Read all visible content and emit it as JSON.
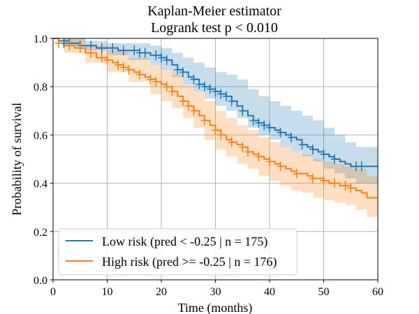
{
  "chart_data": {
    "type": "line",
    "title": "Kaplan-Meier estimator",
    "subtitle": "Logrank test p < 0.010",
    "xlabel": "Time (months)",
    "ylabel": "Probability of survival",
    "xlim": [
      0,
      60
    ],
    "ylim": [
      0.0,
      1.0
    ],
    "x_ticks": [
      "0",
      "10",
      "20",
      "30",
      "40",
      "50",
      "60"
    ],
    "y_ticks": [
      "0.0",
      "0.2",
      "0.4",
      "0.6",
      "0.8",
      "1.0"
    ],
    "grid": true,
    "legend_position": "bottom-left",
    "series": [
      {
        "name": "Low risk (pred < -0.25 | n = 175)",
        "color": "#1f77b4",
        "fill": "#1f77b4",
        "steps": [
          [
            0,
            1.0
          ],
          [
            1,
            0.99
          ],
          [
            3,
            0.98
          ],
          [
            5,
            0.97
          ],
          [
            8,
            0.96
          ],
          [
            10,
            0.96
          ],
          [
            12,
            0.95
          ],
          [
            14,
            0.95
          ],
          [
            16,
            0.94
          ],
          [
            18,
            0.93
          ],
          [
            20,
            0.92
          ],
          [
            21,
            0.91
          ],
          [
            22,
            0.89
          ],
          [
            23,
            0.87
          ],
          [
            24,
            0.86
          ],
          [
            25,
            0.84
          ],
          [
            26,
            0.83
          ],
          [
            27,
            0.81
          ],
          [
            28,
            0.8
          ],
          [
            29,
            0.79
          ],
          [
            30,
            0.78
          ],
          [
            31,
            0.77
          ],
          [
            32,
            0.76
          ],
          [
            33,
            0.74
          ],
          [
            34,
            0.72
          ],
          [
            35,
            0.7
          ],
          [
            36,
            0.68
          ],
          [
            37,
            0.66
          ],
          [
            38,
            0.65
          ],
          [
            39,
            0.64
          ],
          [
            40,
            0.63
          ],
          [
            41,
            0.62
          ],
          [
            42,
            0.61
          ],
          [
            43,
            0.6
          ],
          [
            44,
            0.59
          ],
          [
            45,
            0.58
          ],
          [
            46,
            0.56
          ],
          [
            47,
            0.55
          ],
          [
            48,
            0.54
          ],
          [
            49,
            0.53
          ],
          [
            50,
            0.52
          ],
          [
            51,
            0.51
          ],
          [
            52,
            0.5
          ],
          [
            53,
            0.49
          ],
          [
            54,
            0.48
          ],
          [
            55,
            0.47
          ],
          [
            60,
            0.47
          ]
        ],
        "ci_upper": [
          [
            0,
            1.0
          ],
          [
            2,
            1.0
          ],
          [
            6,
            0.99
          ],
          [
            10,
            0.98
          ],
          [
            14,
            0.98
          ],
          [
            18,
            0.97
          ],
          [
            20,
            0.96
          ],
          [
            22,
            0.94
          ],
          [
            24,
            0.92
          ],
          [
            26,
            0.9
          ],
          [
            28,
            0.88
          ],
          [
            30,
            0.86
          ],
          [
            32,
            0.85
          ],
          [
            34,
            0.83
          ],
          [
            36,
            0.79
          ],
          [
            38,
            0.76
          ],
          [
            40,
            0.74
          ],
          [
            42,
            0.72
          ],
          [
            44,
            0.7
          ],
          [
            46,
            0.68
          ],
          [
            48,
            0.66
          ],
          [
            50,
            0.63
          ],
          [
            52,
            0.6
          ],
          [
            54,
            0.57
          ],
          [
            56,
            0.55
          ],
          [
            60,
            0.55
          ]
        ],
        "ci_lower": [
          [
            0,
            1.0
          ],
          [
            2,
            0.97
          ],
          [
            6,
            0.95
          ],
          [
            10,
            0.93
          ],
          [
            14,
            0.91
          ],
          [
            18,
            0.89
          ],
          [
            20,
            0.87
          ],
          [
            22,
            0.84
          ],
          [
            24,
            0.81
          ],
          [
            26,
            0.78
          ],
          [
            28,
            0.75
          ],
          [
            30,
            0.72
          ],
          [
            32,
            0.7
          ],
          [
            34,
            0.67
          ],
          [
            36,
            0.63
          ],
          [
            38,
            0.6
          ],
          [
            40,
            0.58
          ],
          [
            42,
            0.55
          ],
          [
            44,
            0.53
          ],
          [
            46,
            0.51
          ],
          [
            48,
            0.49
          ],
          [
            50,
            0.46
          ],
          [
            52,
            0.44
          ],
          [
            54,
            0.42
          ],
          [
            56,
            0.4
          ],
          [
            60,
            0.4
          ]
        ],
        "censored": [
          [
            2,
            0.98
          ],
          [
            3,
            0.98
          ],
          [
            5,
            0.97
          ],
          [
            7,
            0.97
          ],
          [
            9,
            0.96
          ],
          [
            11,
            0.96
          ],
          [
            13,
            0.95
          ],
          [
            15,
            0.95
          ],
          [
            16,
            0.94
          ],
          [
            17,
            0.94
          ],
          [
            19,
            0.93
          ],
          [
            20,
            0.92
          ],
          [
            21,
            0.91
          ],
          [
            23,
            0.87
          ],
          [
            24,
            0.86
          ],
          [
            26,
            0.83
          ],
          [
            27,
            0.81
          ],
          [
            28,
            0.8
          ],
          [
            29,
            0.79
          ],
          [
            30,
            0.78
          ],
          [
            31,
            0.77
          ],
          [
            32,
            0.76
          ],
          [
            33,
            0.74
          ],
          [
            35,
            0.7
          ],
          [
            37,
            0.66
          ],
          [
            38,
            0.65
          ],
          [
            39,
            0.64
          ],
          [
            40,
            0.63
          ],
          [
            42,
            0.61
          ],
          [
            44,
            0.59
          ],
          [
            46,
            0.56
          ],
          [
            48,
            0.54
          ],
          [
            50,
            0.52
          ],
          [
            52,
            0.5
          ],
          [
            56,
            0.47
          ],
          [
            57,
            0.47
          ]
        ]
      },
      {
        "name": "High risk (pred >= -0.25 | n = 176)",
        "color": "#ff7f0e",
        "fill": "#ff7f0e",
        "steps": [
          [
            0,
            1.0
          ],
          [
            1,
            0.98
          ],
          [
            2,
            0.97
          ],
          [
            4,
            0.96
          ],
          [
            6,
            0.94
          ],
          [
            8,
            0.92
          ],
          [
            10,
            0.91
          ],
          [
            11,
            0.9
          ],
          [
            12,
            0.89
          ],
          [
            13,
            0.88
          ],
          [
            14,
            0.87
          ],
          [
            15,
            0.86
          ],
          [
            16,
            0.85
          ],
          [
            17,
            0.84
          ],
          [
            18,
            0.83
          ],
          [
            19,
            0.82
          ],
          [
            20,
            0.81
          ],
          [
            21,
            0.8
          ],
          [
            22,
            0.78
          ],
          [
            23,
            0.76
          ],
          [
            24,
            0.74
          ],
          [
            25,
            0.72
          ],
          [
            26,
            0.7
          ],
          [
            27,
            0.68
          ],
          [
            28,
            0.66
          ],
          [
            29,
            0.64
          ],
          [
            30,
            0.62
          ],
          [
            31,
            0.6
          ],
          [
            32,
            0.58
          ],
          [
            33,
            0.57
          ],
          [
            34,
            0.56
          ],
          [
            35,
            0.55
          ],
          [
            36,
            0.53
          ],
          [
            37,
            0.52
          ],
          [
            38,
            0.51
          ],
          [
            39,
            0.5
          ],
          [
            40,
            0.49
          ],
          [
            41,
            0.48
          ],
          [
            42,
            0.47
          ],
          [
            43,
            0.46
          ],
          [
            44,
            0.45
          ],
          [
            45,
            0.44
          ],
          [
            46,
            0.44
          ],
          [
            47,
            0.43
          ],
          [
            48,
            0.42
          ],
          [
            49,
            0.42
          ],
          [
            50,
            0.41
          ],
          [
            51,
            0.4
          ],
          [
            52,
            0.4
          ],
          [
            53,
            0.39
          ],
          [
            54,
            0.39
          ],
          [
            55,
            0.38
          ],
          [
            56,
            0.37
          ],
          [
            57,
            0.36
          ],
          [
            58,
            0.34
          ],
          [
            60,
            0.34
          ]
        ],
        "ci_upper": [
          [
            0,
            1.0
          ],
          [
            2,
            1.0
          ],
          [
            6,
            0.97
          ],
          [
            10,
            0.95
          ],
          [
            14,
            0.92
          ],
          [
            18,
            0.89
          ],
          [
            20,
            0.87
          ],
          [
            22,
            0.85
          ],
          [
            24,
            0.81
          ],
          [
            26,
            0.78
          ],
          [
            28,
            0.74
          ],
          [
            30,
            0.7
          ],
          [
            32,
            0.67
          ],
          [
            34,
            0.64
          ],
          [
            36,
            0.62
          ],
          [
            38,
            0.59
          ],
          [
            40,
            0.57
          ],
          [
            42,
            0.55
          ],
          [
            44,
            0.53
          ],
          [
            46,
            0.52
          ],
          [
            48,
            0.5
          ],
          [
            50,
            0.49
          ],
          [
            52,
            0.48
          ],
          [
            54,
            0.47
          ],
          [
            56,
            0.46
          ],
          [
            58,
            0.43
          ],
          [
            60,
            0.43
          ]
        ],
        "ci_lower": [
          [
            0,
            1.0
          ],
          [
            2,
            0.94
          ],
          [
            6,
            0.9
          ],
          [
            10,
            0.86
          ],
          [
            14,
            0.82
          ],
          [
            18,
            0.77
          ],
          [
            20,
            0.74
          ],
          [
            22,
            0.71
          ],
          [
            24,
            0.67
          ],
          [
            26,
            0.63
          ],
          [
            28,
            0.58
          ],
          [
            30,
            0.54
          ],
          [
            32,
            0.51
          ],
          [
            34,
            0.48
          ],
          [
            36,
            0.46
          ],
          [
            38,
            0.43
          ],
          [
            40,
            0.41
          ],
          [
            42,
            0.39
          ],
          [
            44,
            0.37
          ],
          [
            46,
            0.36
          ],
          [
            48,
            0.34
          ],
          [
            50,
            0.33
          ],
          [
            52,
            0.32
          ],
          [
            54,
            0.31
          ],
          [
            56,
            0.29
          ],
          [
            58,
            0.26
          ],
          [
            60,
            0.26
          ]
        ],
        "censored": [
          [
            1,
            0.98
          ],
          [
            3,
            0.97
          ],
          [
            5,
            0.96
          ],
          [
            7,
            0.94
          ],
          [
            9,
            0.92
          ],
          [
            10,
            0.91
          ],
          [
            12,
            0.89
          ],
          [
            13,
            0.88
          ],
          [
            14,
            0.87
          ],
          [
            16,
            0.85
          ],
          [
            18,
            0.83
          ],
          [
            19,
            0.82
          ],
          [
            21,
            0.8
          ],
          [
            22,
            0.78
          ],
          [
            24,
            0.74
          ],
          [
            25,
            0.72
          ],
          [
            26,
            0.7
          ],
          [
            28,
            0.66
          ],
          [
            30,
            0.62
          ],
          [
            31,
            0.6
          ],
          [
            33,
            0.57
          ],
          [
            35,
            0.55
          ],
          [
            36,
            0.53
          ],
          [
            38,
            0.51
          ],
          [
            40,
            0.49
          ],
          [
            42,
            0.47
          ],
          [
            45,
            0.44
          ],
          [
            48,
            0.42
          ],
          [
            50,
            0.41
          ],
          [
            52,
            0.4
          ],
          [
            54,
            0.39
          ],
          [
            55,
            0.38
          ]
        ]
      }
    ]
  }
}
